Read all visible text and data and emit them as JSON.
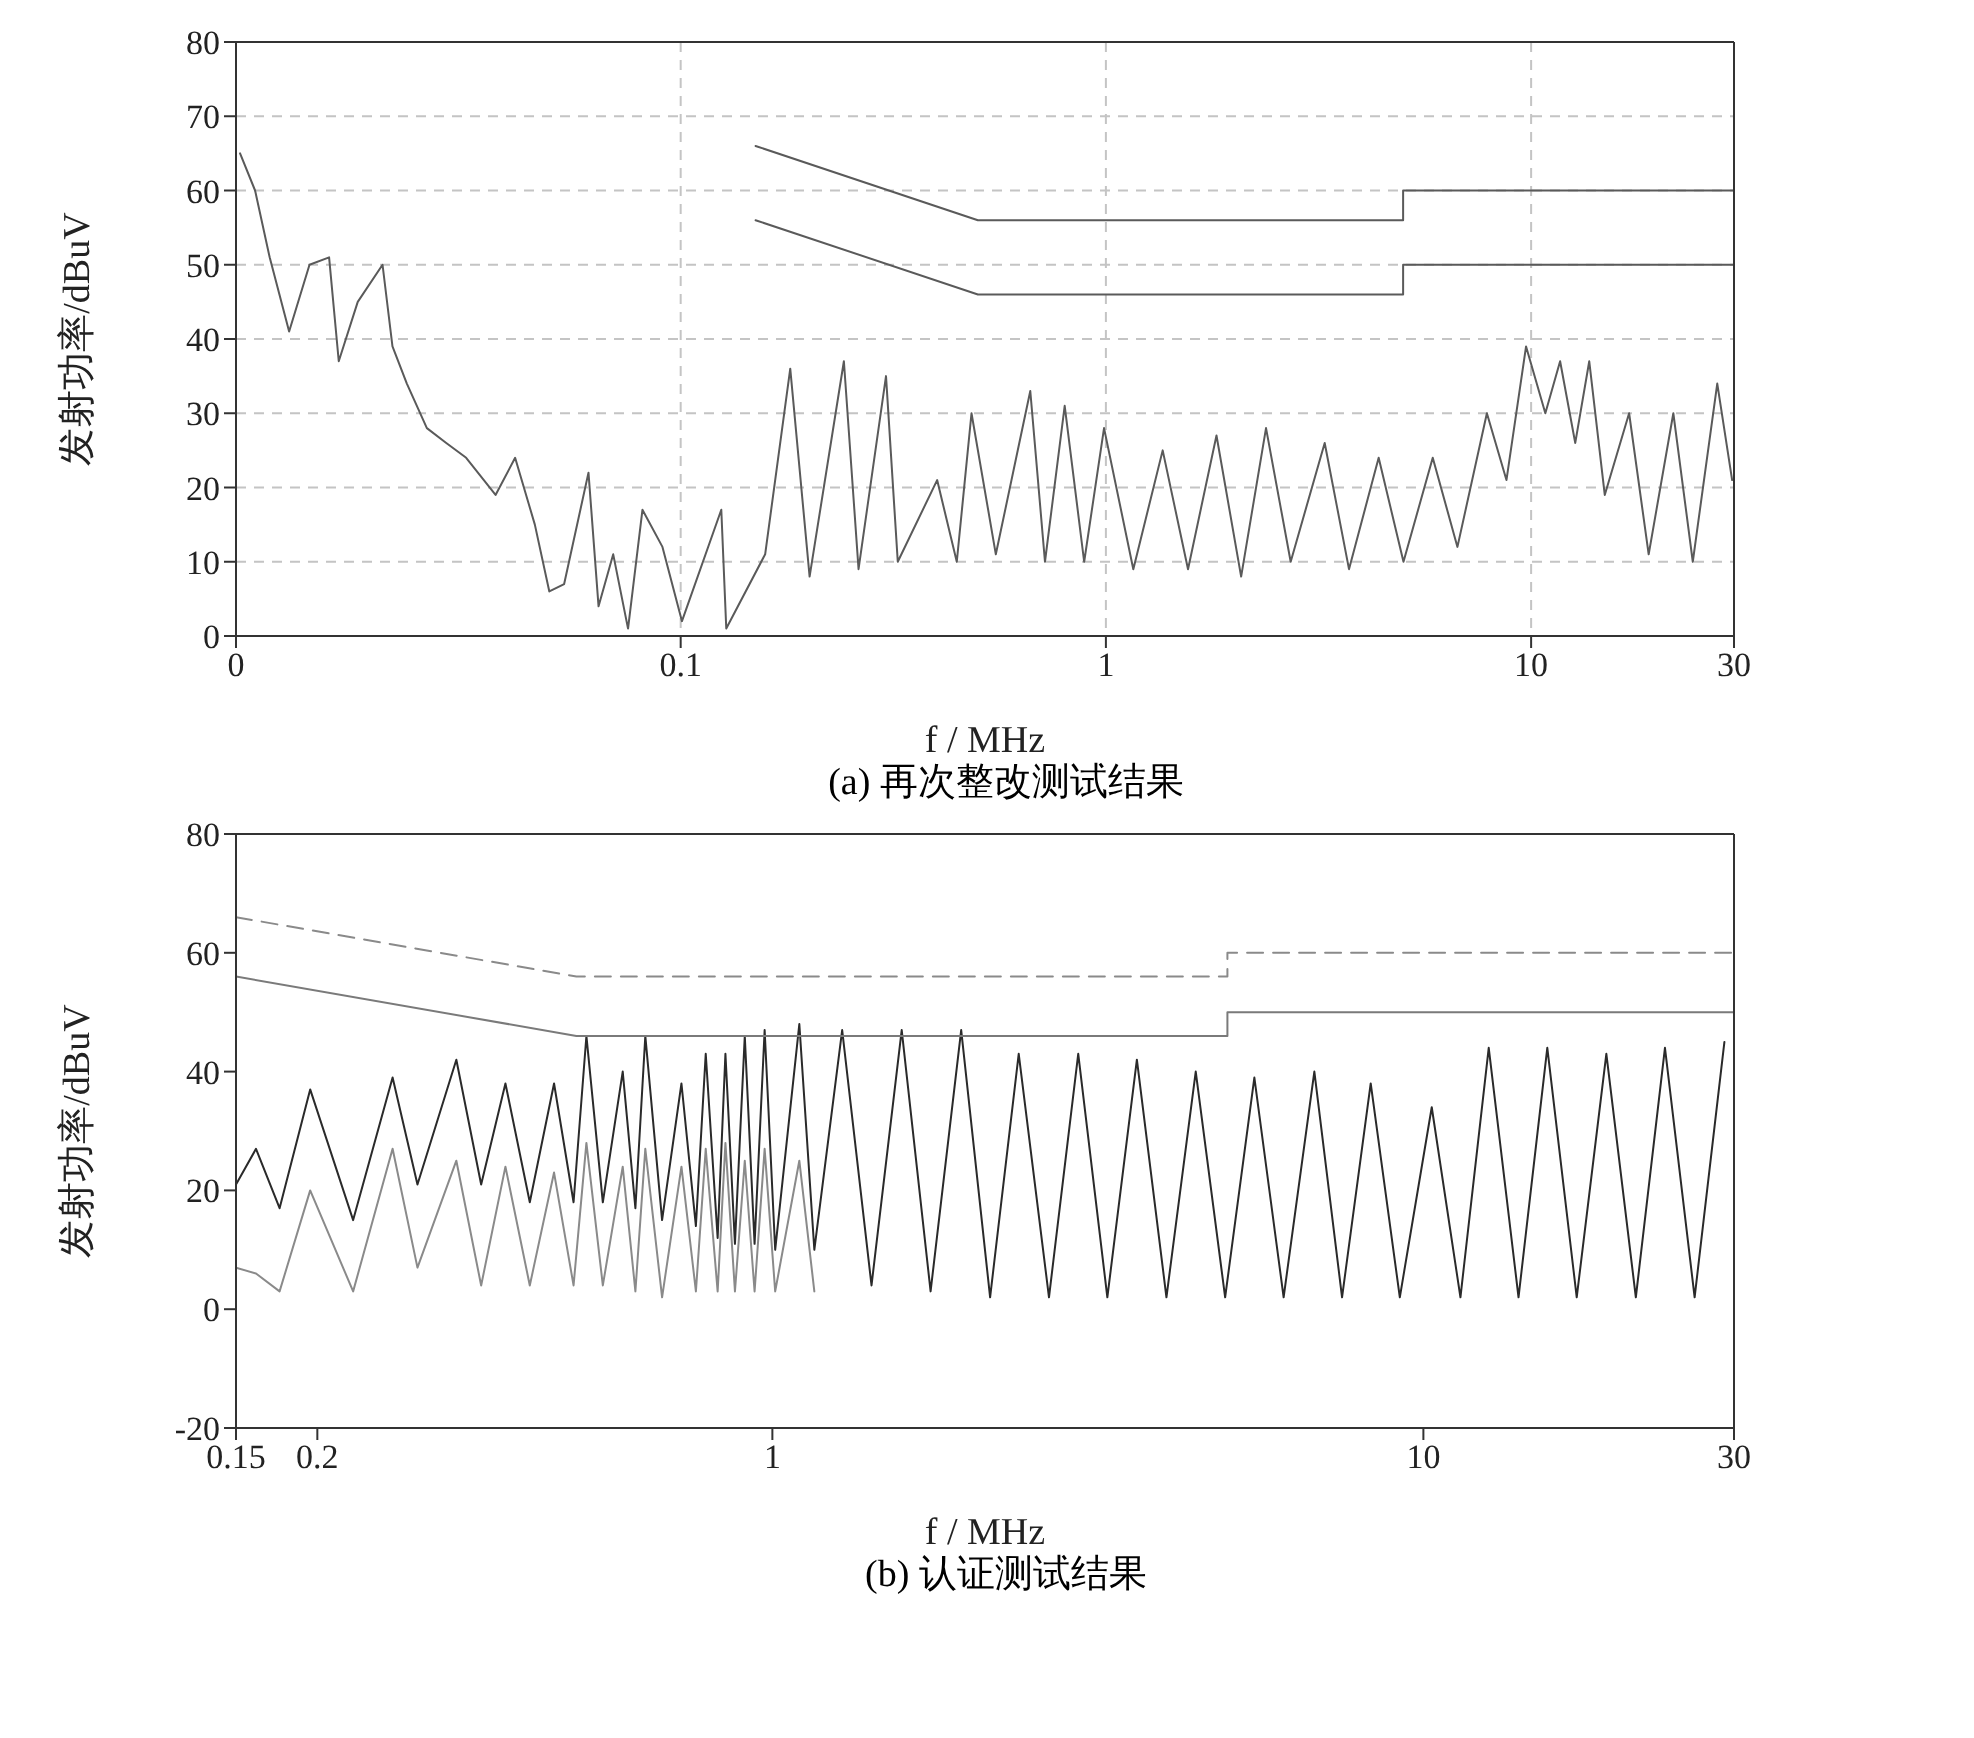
{
  "chart_data": [
    {
      "type": "line",
      "title": "(a) 再次整改测试结果",
      "xlabel": "f / MHz",
      "ylabel": "发射功率/dBuV",
      "log": "x",
      "xlim": [
        0.009,
        30
      ],
      "xticks": [
        {
          "value": 0.009,
          "label": "0"
        },
        0.1,
        1,
        10,
        30
      ],
      "ylim": [
        0,
        80
      ],
      "yticks": [
        0,
        10,
        20,
        30,
        40,
        50,
        60,
        70,
        80
      ],
      "grid": true,
      "marker": "none",
      "line_style": "solid",
      "series": [
        {
          "color": "#5a5a5a",
          "x": [
            0.0092,
            0.00998,
            0.0108,
            0.012,
            0.0134,
            0.0149,
            0.0157,
            0.0174,
            0.0199,
            0.021,
            0.0227,
            0.0253,
            0.0281,
            0.0313,
            0.0367,
            0.0408,
            0.0454,
            0.0491,
            0.0532,
            0.0607,
            0.0641,
            0.0694,
            0.0752,
            0.0813,
            0.0906,
            0.1007,
            0.1246,
            0.128,
            0.158,
            0.181,
            0.201,
            0.242,
            0.262,
            0.304,
            0.324,
            0.401,
            0.446,
            0.483,
            0.551,
            0.664,
            0.719,
            0.8,
            0.889,
            0.99,
            1.16,
            1.36,
            1.56,
            1.82,
            2.08,
            2.38,
            2.72,
            3.27,
            3.73,
            4.38,
            5.01,
            5.87,
            6.71,
            7.87,
            8.75,
            9.73,
            10.8,
            11.7,
            12.7,
            13.7,
            14.9,
            17,
            18.9,
            21.6,
            24,
            27.4,
            29.7
          ],
          "values": [
            65,
            60,
            51,
            41,
            50,
            51,
            37,
            45,
            50,
            39,
            34,
            28,
            26,
            24,
            19,
            24,
            15,
            6,
            7,
            22,
            4,
            11,
            1,
            17,
            12,
            2,
            17,
            1,
            11,
            36,
            8,
            37,
            9,
            35,
            10,
            21,
            10,
            30,
            11,
            33,
            10,
            31,
            10,
            28,
            9,
            25,
            9,
            27,
            8,
            28,
            10,
            26,
            9,
            24,
            10,
            24,
            12,
            30,
            21,
            39,
            30,
            37,
            26,
            37,
            19,
            30,
            11,
            30,
            10,
            34,
            21
          ]
        },
        {
          "color": "#5a5a5a",
          "x": [
            0.15,
            0.5,
            5,
            5,
            30
          ],
          "values": [
            66,
            56,
            56,
            60,
            60
          ]
        },
        {
          "color": "#5a5a5a",
          "x": [
            0.15,
            0.5,
            5,
            5,
            30
          ],
          "values": [
            56,
            46,
            46,
            50,
            50
          ]
        }
      ]
    },
    {
      "type": "line",
      "title": "(b) 认证测试结果",
      "xlabel": "f / MHz",
      "ylabel": "发射功率/dBuV",
      "log": "x",
      "xlim": [
        0.15,
        30
      ],
      "xticks": [
        0.15,
        0.2,
        1,
        10,
        30
      ],
      "ylim": [
        -20,
        80
      ],
      "yticks": [
        -20,
        0,
        20,
        40,
        60,
        80
      ],
      "marker": "none",
      "line_style": "solid",
      "series": [
        {
          "color": "#2a2a2a",
          "x": [
            0.15,
            0.161,
            0.175,
            0.195,
            0.227,
            0.261,
            0.285,
            0.327,
            0.357,
            0.389,
            0.424,
            0.462,
            0.495,
            0.518,
            0.549,
            0.589,
            0.616,
            0.638,
            0.677,
            0.725,
            0.763,
            0.79,
            0.824,
            0.847,
            0.876,
            0.907,
            0.939,
            0.973,
            1.01,
            1.1,
            1.16,
            1.28,
            1.42,
            1.58,
            1.75,
            1.95,
            2.16,
            2.39,
            2.66,
            2.95,
            3.27,
            3.63,
            4.03,
            4.47,
            4.96,
            5.5,
            6.1,
            6.8,
            7.5,
            8.3,
            9.2,
            10.3,
            11.4,
            12.6,
            14,
            15.5,
            17.2,
            19.1,
            21.2,
            23.5,
            26.1,
            29
          ],
          "values": [
            21,
            27,
            17,
            37,
            15,
            39,
            21,
            42,
            21,
            38,
            18,
            38,
            18,
            46,
            18,
            40,
            17,
            46,
            15,
            38,
            14,
            43,
            12,
            43,
            11,
            46,
            11,
            47,
            10,
            48,
            10,
            47,
            4,
            47,
            3,
            47,
            2,
            43,
            2,
            43,
            2,
            42,
            2,
            40,
            2,
            39,
            2,
            40,
            2,
            38,
            2,
            34,
            2,
            44,
            2,
            44,
            2,
            43,
            2,
            44,
            2,
            45
          ]
        },
        {
          "color": "#8a8a8a",
          "x": [
            0.15,
            0.161,
            0.175,
            0.195,
            0.227,
            0.261,
            0.285,
            0.327,
            0.357,
            0.389,
            0.424,
            0.462,
            0.495,
            0.518,
            0.549,
            0.589,
            0.616,
            0.638,
            0.677,
            0.725,
            0.763,
            0.79,
            0.824,
            0.847,
            0.876,
            0.907,
            0.939,
            0.973,
            1.01,
            1.1,
            1.16
          ],
          "values": [
            7,
            6,
            3,
            20,
            3,
            27,
            7,
            25,
            4,
            24,
            4,
            23,
            4,
            28,
            4,
            24,
            3,
            27,
            2,
            24,
            3,
            27,
            3,
            28,
            3,
            25,
            3,
            27,
            3,
            25,
            3
          ]
        },
        {
          "color": "#8a8a8a",
          "line_style": "dashed",
          "x": [
            0.15,
            0.5,
            5,
            5,
            30
          ],
          "values": [
            66,
            56,
            56,
            60,
            60
          ]
        },
        {
          "color": "#7a7a7a",
          "x": [
            0.15,
            0.5,
            5,
            5,
            30
          ],
          "values": [
            56,
            46,
            46,
            50,
            50
          ]
        }
      ]
    }
  ]
}
